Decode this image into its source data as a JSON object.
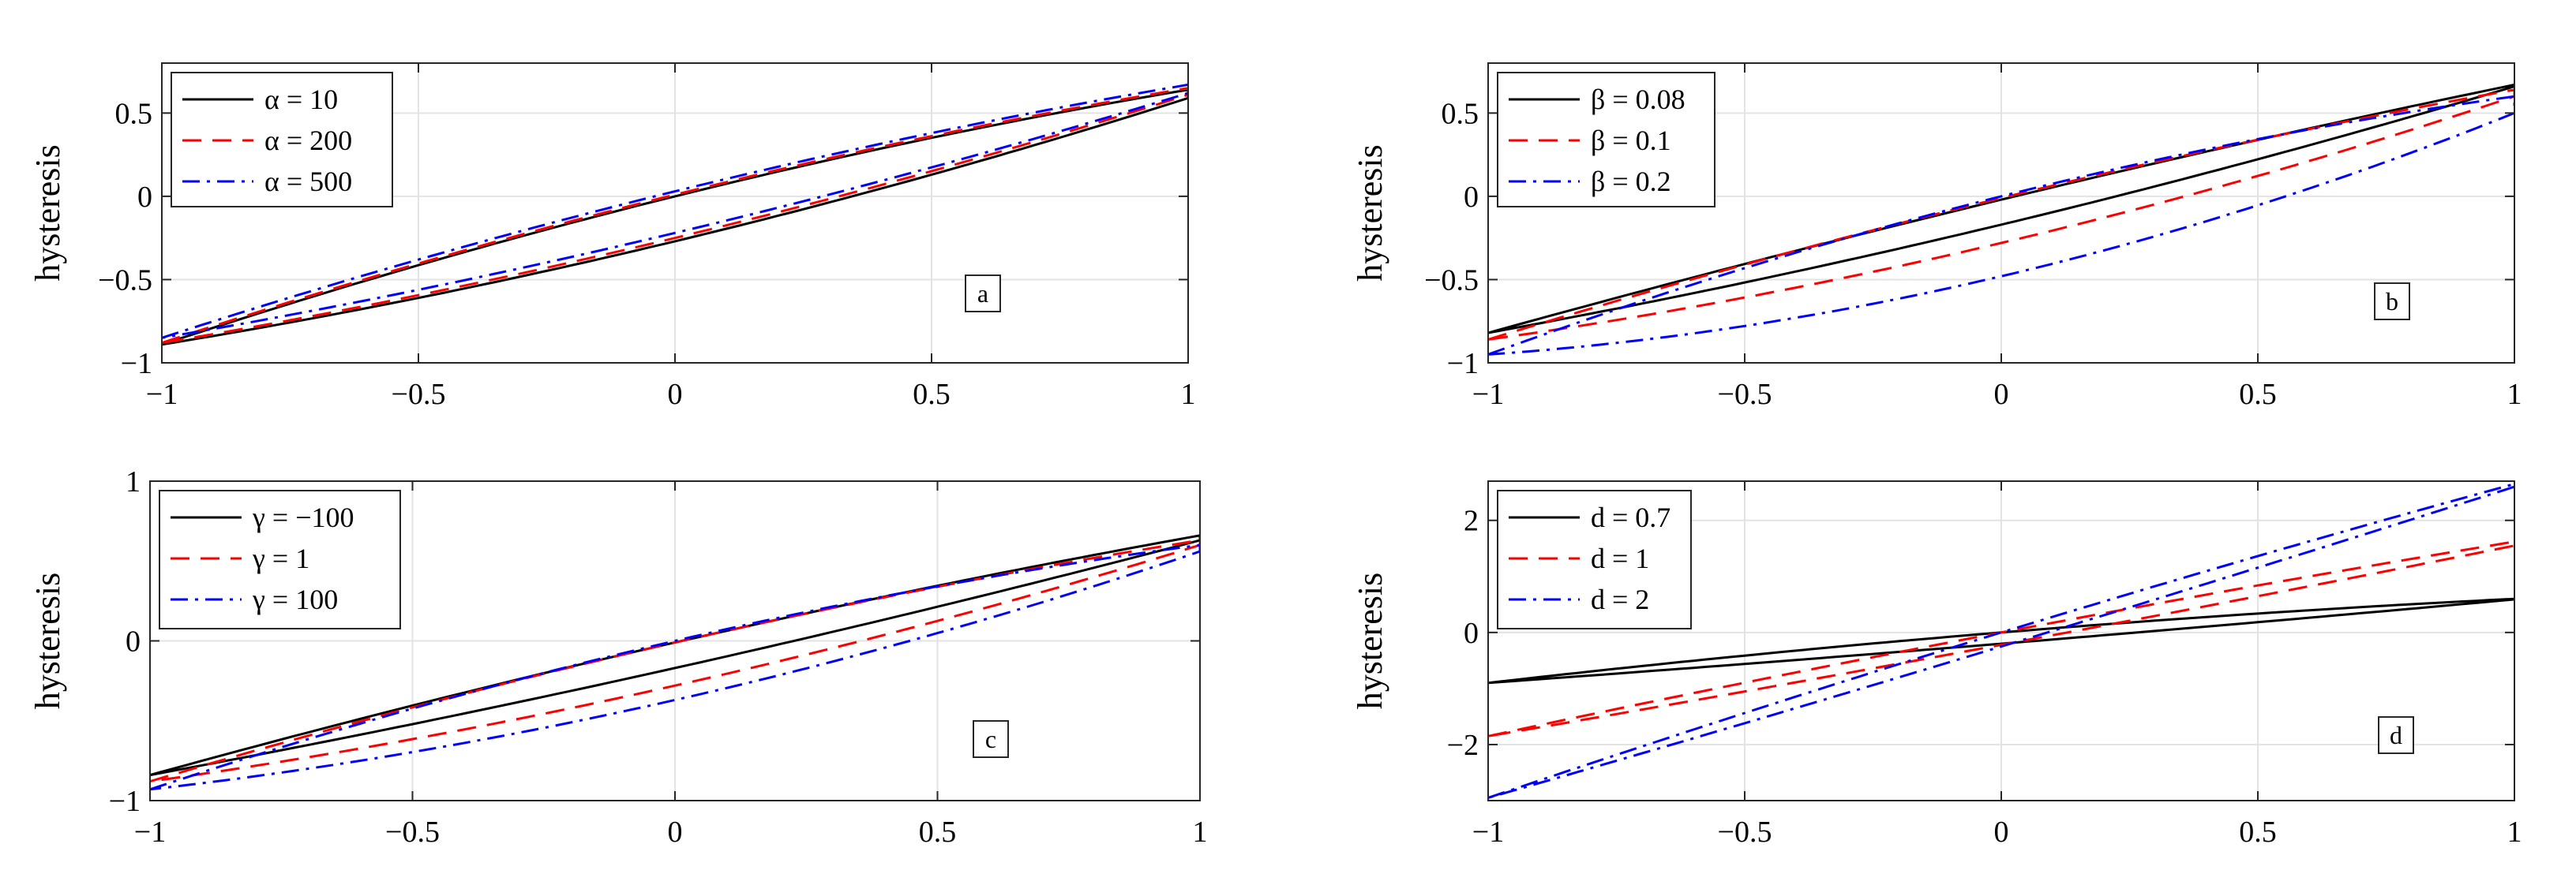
{
  "chart_data": [
    {
      "id": "a",
      "type": "line",
      "panel_label": "a",
      "ylabel": "hysteresis",
      "xlabel": "",
      "xlim": [
        -1,
        1
      ],
      "ylim": [
        -1,
        0.8
      ],
      "xticks": [
        -1,
        -0.5,
        0,
        0.5,
        1
      ],
      "xtick_labels": [
        "−1",
        "−0.5",
        "0",
        "0.5",
        "1"
      ],
      "yticks": [
        -1,
        -0.5,
        0,
        0.5
      ],
      "ytick_labels": [
        "−1",
        "−0.5",
        "0",
        "0.5"
      ],
      "grid": true,
      "legend_position": "top-left",
      "series": [
        {
          "name": "α = 10",
          "color": "#000000",
          "style": "solid",
          "upper_at_min": -0.89,
          "upper_at_max": 0.64,
          "lower_at_min": -0.89,
          "lower_at_max": 0.59,
          "mid_upper": 0.0,
          "mid_lower": -0.27
        },
        {
          "name": "α = 200",
          "color": "#ff0000",
          "style": "dashed",
          "upper_at_min": -0.88,
          "upper_at_max": 0.65,
          "lower_at_min": -0.88,
          "lower_at_max": 0.61,
          "mid_upper": 0.01,
          "mid_lower": -0.25
        },
        {
          "name": "α = 500",
          "color": "#0000ff",
          "style": "dashdot",
          "upper_at_min": -0.85,
          "upper_at_max": 0.67,
          "lower_at_min": -0.85,
          "lower_at_max": 0.62,
          "mid_upper": 0.03,
          "mid_lower": -0.22
        }
      ]
    },
    {
      "id": "b",
      "type": "line",
      "panel_label": "b",
      "ylabel": "hysteresis",
      "xlabel": "",
      "xlim": [
        -1,
        1
      ],
      "ylim": [
        -1,
        0.8
      ],
      "xticks": [
        -1,
        -0.5,
        0,
        0.5,
        1
      ],
      "xtick_labels": [
        "−1",
        "−0.5",
        "0",
        "0.5",
        "1"
      ],
      "yticks": [
        -1,
        -0.5,
        0,
        0.5
      ],
      "ytick_labels": [
        "−1",
        "−0.5",
        "0",
        "0.5"
      ],
      "grid": true,
      "legend_position": "top-left",
      "series": [
        {
          "name": "β = 0.08",
          "color": "#000000",
          "style": "solid",
          "upper_at_min": -0.82,
          "upper_at_max": 0.67,
          "lower_at_min": -0.82,
          "lower_at_max": 0.66,
          "mid_upper": -0.02,
          "mid_lower": -0.17
        },
        {
          "name": "β = 0.1",
          "color": "#ff0000",
          "style": "dashed",
          "upper_at_min": -0.86,
          "upper_at_max": 0.64,
          "lower_at_min": -0.86,
          "lower_at_max": 0.6,
          "mid_upper": -0.01,
          "mid_lower": -0.28
        },
        {
          "name": "β = 0.2",
          "color": "#0000ff",
          "style": "dashdot",
          "upper_at_min": -0.95,
          "upper_at_max": 0.6,
          "lower_at_min": -0.95,
          "lower_at_max": 0.5,
          "mid_upper": 0.0,
          "mid_lower": -0.48
        }
      ]
    },
    {
      "id": "c",
      "type": "line",
      "panel_label": "c",
      "ylabel": "hysteresis",
      "xlabel": "",
      "xlim": [
        -1,
        1
      ],
      "ylim": [
        -1,
        1
      ],
      "xticks": [
        -1,
        -0.5,
        0,
        0.5,
        1
      ],
      "xtick_labels": [
        "−1",
        "−0.5",
        "0",
        "0.5",
        "1"
      ],
      "yticks": [
        -1,
        0,
        1
      ],
      "ytick_labels": [
        "−1",
        "0",
        "1"
      ],
      "grid": true,
      "legend_position": "top-left",
      "series": [
        {
          "name": "γ = −100",
          "color": "#000000",
          "style": "solid",
          "upper_at_min": -0.84,
          "upper_at_max": 0.66,
          "lower_at_min": -0.84,
          "lower_at_max": 0.63,
          "mid_upper": -0.01,
          "mid_lower": -0.17
        },
        {
          "name": "γ = 1",
          "color": "#ff0000",
          "style": "dashed",
          "upper_at_min": -0.88,
          "upper_at_max": 0.63,
          "lower_at_min": -0.88,
          "lower_at_max": 0.6,
          "mid_upper": -0.01,
          "mid_lower": -0.28
        },
        {
          "name": "γ = 100",
          "color": "#0000ff",
          "style": "dashdot",
          "upper_at_min": -0.93,
          "upper_at_max": 0.6,
          "lower_at_min": -0.93,
          "lower_at_max": 0.56,
          "mid_upper": 0.0,
          "mid_lower": -0.37
        }
      ]
    },
    {
      "id": "d",
      "type": "line",
      "panel_label": "d",
      "ylabel": "hysteresis",
      "xlabel": "",
      "xlim": [
        -1,
        1
      ],
      "ylim": [
        -3,
        2.7
      ],
      "xticks": [
        -1,
        -0.5,
        0,
        0.5,
        1
      ],
      "xtick_labels": [
        "−1",
        "−0.5",
        "0",
        "0.5",
        "1"
      ],
      "yticks": [
        -2,
        0,
        2
      ],
      "ytick_labels": [
        "−2",
        "0",
        "2"
      ],
      "grid": true,
      "legend_position": "top-left",
      "series": [
        {
          "name": "d = 0.7",
          "color": "#000000",
          "style": "solid",
          "upper_at_min": -0.9,
          "upper_at_max": 0.6,
          "lower_at_min": -0.9,
          "lower_at_max": 0.59,
          "mid_upper": 0.0,
          "mid_lower": -0.2
        },
        {
          "name": "d = 1",
          "color": "#ff0000",
          "style": "dashed",
          "upper_at_min": -1.85,
          "upper_at_max": 1.62,
          "lower_at_min": -1.85,
          "lower_at_max": 1.55,
          "mid_upper": 0.0,
          "mid_lower": -0.22
        },
        {
          "name": "d = 2",
          "color": "#0000ff",
          "style": "dashdot",
          "upper_at_min": -2.95,
          "upper_at_max": 2.65,
          "lower_at_min": -2.95,
          "lower_at_max": 2.6,
          "mid_upper": 0.0,
          "mid_lower": -0.25
        }
      ]
    }
  ]
}
